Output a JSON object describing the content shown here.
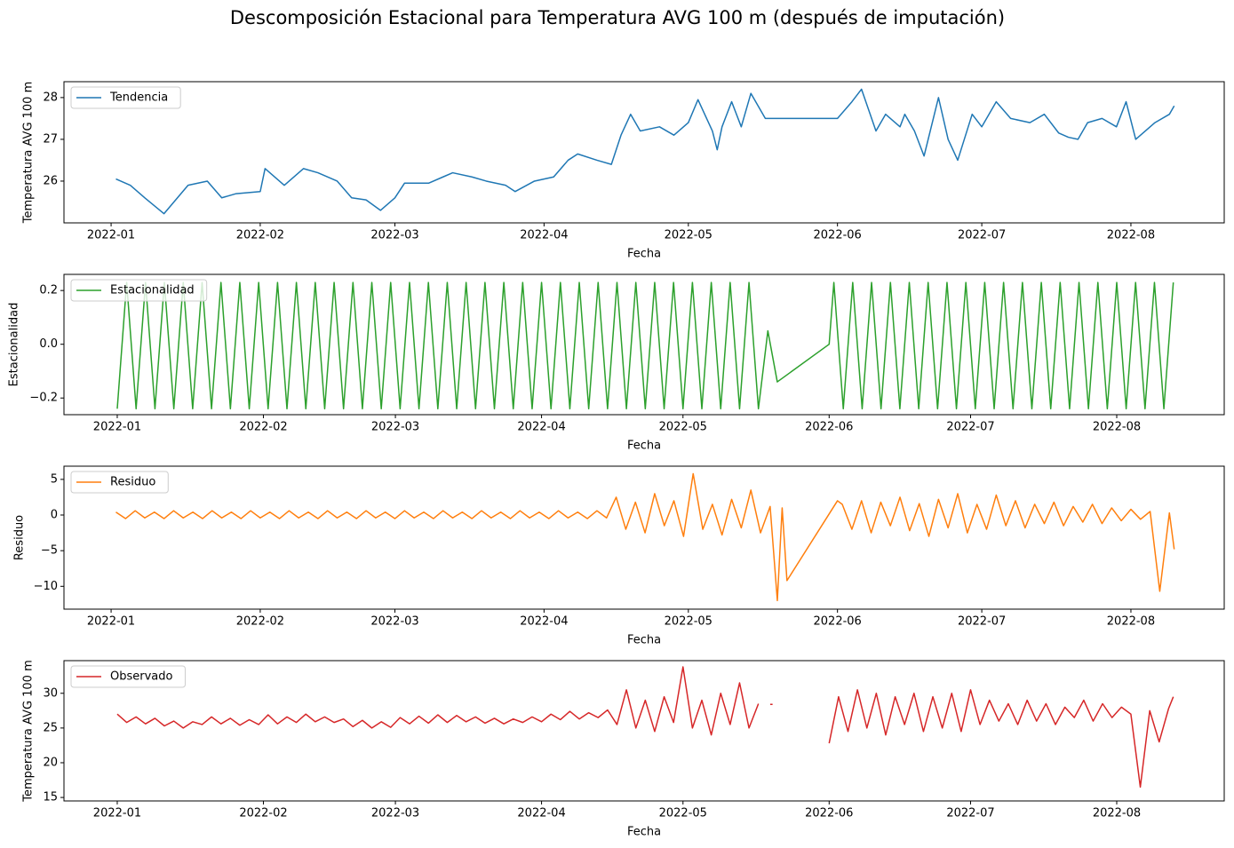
{
  "title": "Descomposición Estacional para Temperatura AVG 100 m (después de imputación)",
  "chart_data": [
    {
      "type": "line",
      "x_label": "Fecha",
      "y_label": "Temperatura AVG 100 m",
      "legend": "upper left",
      "xlim": [
        -9.8,
        231.4
      ],
      "ylim": [
        25.0,
        28.38
      ],
      "xticks": [
        {
          "value": 0,
          "label": "2022-01"
        },
        {
          "value": 31,
          "label": "2022-02"
        },
        {
          "value": 59,
          "label": "2022-03"
        },
        {
          "value": 90,
          "label": "2022-04"
        },
        {
          "value": 120,
          "label": "2022-05"
        },
        {
          "value": 151,
          "label": "2022-06"
        },
        {
          "value": 181,
          "label": "2022-07"
        },
        {
          "value": 212,
          "label": "2022-08"
        }
      ],
      "yticks": [
        26,
        27,
        28
      ],
      "x": [
        1,
        4,
        7,
        11,
        16,
        20,
        23,
        26,
        31,
        32,
        36,
        40,
        43,
        47,
        50,
        53,
        56,
        59,
        61,
        66,
        69,
        71,
        75,
        78,
        82,
        84,
        88,
        92,
        95,
        97,
        101,
        104,
        106,
        108,
        110,
        114,
        117,
        120,
        122,
        125,
        126,
        127,
        129,
        131,
        133,
        136,
        140,
        151,
        154,
        156,
        159,
        161,
        164,
        165,
        167,
        169,
        172,
        174,
        176,
        179,
        181,
        184,
        187,
        191,
        194,
        197,
        199,
        201,
        203,
        206,
        209,
        211,
        213,
        217,
        220,
        221
      ],
      "series": [
        {
          "name": "Tendencia",
          "color": "#1f77b4",
          "values": [
            26.05,
            25.9,
            25.6,
            25.22,
            25.9,
            26.0,
            25.6,
            25.7,
            25.75,
            26.3,
            25.9,
            26.3,
            26.2,
            26.0,
            25.6,
            25.55,
            25.3,
            25.6,
            25.95,
            25.95,
            26.1,
            26.2,
            26.1,
            26.0,
            25.9,
            25.75,
            26.0,
            26.1,
            26.5,
            26.65,
            26.5,
            26.4,
            27.1,
            27.6,
            27.2,
            27.3,
            27.1,
            27.4,
            27.95,
            27.2,
            26.75,
            27.3,
            27.9,
            27.3,
            28.1,
            27.5,
            27.5,
            27.5,
            27.9,
            28.2,
            27.2,
            27.6,
            27.3,
            27.6,
            27.2,
            26.6,
            28.0,
            27.0,
            26.5,
            27.6,
            27.3,
            27.9,
            27.5,
            27.4,
            27.6,
            27.15,
            27.05,
            27.0,
            27.4,
            27.5,
            27.3,
            27.9,
            27.0,
            27.4,
            27.6,
            27.8
          ]
        }
      ]
    },
    {
      "type": "line",
      "x_label": "Fecha",
      "y_label": "Estacionalidad",
      "legend": "upper left",
      "xlim": [
        -11.3,
        234.8
      ],
      "ylim": [
        -0.262,
        0.26
      ],
      "xticks": [
        {
          "value": 0,
          "label": "2022-01"
        },
        {
          "value": 31,
          "label": "2022-02"
        },
        {
          "value": 59,
          "label": "2022-03"
        },
        {
          "value": 90,
          "label": "2022-04"
        },
        {
          "value": 120,
          "label": "2022-05"
        },
        {
          "value": 151,
          "label": "2022-06"
        },
        {
          "value": 181,
          "label": "2022-07"
        },
        {
          "value": 212,
          "label": "2022-08"
        }
      ],
      "yticks": [
        0.2,
        {
          "value": 0,
          "label": "0.0"
        },
        {
          "value": -0.2,
          "label": "−0.2"
        }
      ],
      "x": [
        0,
        2,
        4,
        6,
        8,
        10,
        12,
        14,
        16,
        18,
        20,
        22,
        24,
        26,
        28,
        30,
        32,
        34,
        36,
        38,
        40,
        42,
        44,
        46,
        48,
        50,
        52,
        54,
        56,
        58,
        60,
        62,
        64,
        66,
        68,
        70,
        72,
        74,
        76,
        78,
        80,
        82,
        84,
        86,
        88,
        90,
        92,
        94,
        96,
        98,
        100,
        102,
        104,
        106,
        108,
        110,
        112,
        114,
        116,
        118,
        120,
        122,
        124,
        126,
        128,
        130,
        132,
        134,
        136,
        138,
        140,
        151,
        152,
        154,
        156,
        158,
        160,
        162,
        164,
        166,
        168,
        170,
        172,
        174,
        176,
        178,
        180,
        182,
        184,
        186,
        188,
        190,
        192,
        194,
        196,
        198,
        200,
        202,
        204,
        206,
        208,
        210,
        212,
        214,
        216,
        218,
        220,
        222,
        224
      ],
      "series": [
        {
          "name": "Estacionalidad",
          "color": "#2ca02c",
          "values": [
            -0.24,
            0.23,
            -0.24,
            0.23,
            -0.24,
            0.23,
            -0.24,
            0.23,
            -0.24,
            0.23,
            -0.24,
            0.23,
            -0.24,
            0.23,
            -0.24,
            0.23,
            -0.24,
            0.23,
            -0.24,
            0.23,
            -0.24,
            0.23,
            -0.24,
            0.23,
            -0.24,
            0.23,
            -0.24,
            0.23,
            -0.24,
            0.23,
            -0.24,
            0.23,
            -0.24,
            0.23,
            -0.24,
            0.23,
            -0.24,
            0.23,
            -0.24,
            0.23,
            -0.24,
            0.23,
            -0.24,
            0.23,
            -0.24,
            0.23,
            -0.24,
            0.23,
            -0.24,
            0.23,
            -0.24,
            0.23,
            -0.24,
            0.23,
            -0.24,
            0.23,
            -0.24,
            0.23,
            -0.24,
            0.23,
            -0.24,
            0.23,
            -0.24,
            0.23,
            -0.24,
            0.23,
            -0.24,
            0.23,
            -0.24,
            0.05,
            -0.14,
            0.0,
            0.23,
            -0.24,
            0.23,
            -0.24,
            0.23,
            -0.24,
            0.23,
            -0.24,
            0.23,
            -0.24,
            0.23,
            -0.24,
            0.23,
            -0.24,
            0.23,
            -0.24,
            0.23,
            -0.24,
            0.23,
            -0.24,
            0.23,
            -0.24,
            0.23,
            -0.24,
            0.23,
            -0.24,
            0.23,
            -0.24,
            0.23,
            -0.24,
            0.23,
            -0.24,
            0.23,
            -0.24,
            0.23,
            -0.24,
            0.23
          ]
        }
      ]
    },
    {
      "type": "line",
      "x_label": "Fecha",
      "y_label": "Residuo",
      "legend": "upper left",
      "xlim": [
        -9.8,
        231.4
      ],
      "ylim": [
        -13.2,
        6.85
      ],
      "xticks": [
        {
          "value": 0,
          "label": "2022-01"
        },
        {
          "value": 31,
          "label": "2022-02"
        },
        {
          "value": 59,
          "label": "2022-03"
        },
        {
          "value": 90,
          "label": "2022-04"
        },
        {
          "value": 120,
          "label": "2022-05"
        },
        {
          "value": 151,
          "label": "2022-06"
        },
        {
          "value": 181,
          "label": "2022-07"
        },
        {
          "value": 212,
          "label": "2022-08"
        }
      ],
      "yticks": [
        5,
        0,
        {
          "value": -5,
          "label": "−5"
        },
        {
          "value": -10,
          "label": "−10"
        }
      ],
      "x": [
        1,
        3,
        5,
        7,
        9,
        11,
        13,
        15,
        17,
        19,
        21,
        23,
        25,
        27,
        29,
        31,
        33,
        35,
        37,
        39,
        41,
        43,
        45,
        47,
        49,
        51,
        53,
        55,
        57,
        59,
        61,
        63,
        65,
        67,
        69,
        71,
        73,
        75,
        77,
        79,
        81,
        83,
        85,
        87,
        89,
        91,
        93,
        95,
        97,
        99,
        101,
        103,
        105,
        107,
        109,
        111,
        113,
        115,
        117,
        119,
        121,
        123,
        125,
        127,
        129,
        131,
        133,
        135,
        137,
        138.5,
        139.5,
        140.5,
        151,
        152,
        154,
        156,
        158,
        160,
        162,
        164,
        166,
        168,
        170,
        172,
        174,
        176,
        178,
        180,
        182,
        184,
        186,
        188,
        190,
        192,
        194,
        196,
        198,
        200,
        202,
        204,
        206,
        208,
        210,
        212,
        214,
        216,
        218,
        220,
        221
      ],
      "series": [
        {
          "name": "Residuo",
          "color": "#ff7f0e",
          "values": [
            0.4,
            -0.5,
            0.6,
            -0.4,
            0.4,
            -0.5,
            0.6,
            -0.4,
            0.4,
            -0.5,
            0.6,
            -0.4,
            0.4,
            -0.5,
            0.6,
            -0.4,
            0.4,
            -0.5,
            0.6,
            -0.4,
            0.4,
            -0.5,
            0.6,
            -0.4,
            0.4,
            -0.5,
            0.6,
            -0.4,
            0.4,
            -0.5,
            0.6,
            -0.4,
            0.4,
            -0.5,
            0.6,
            -0.4,
            0.4,
            -0.5,
            0.6,
            -0.4,
            0.4,
            -0.5,
            0.6,
            -0.4,
            0.4,
            -0.5,
            0.6,
            -0.4,
            0.4,
            -0.5,
            0.6,
            -0.4,
            2.5,
            -2,
            1.8,
            -2.5,
            3,
            -1.5,
            2,
            -3,
            5.8,
            -2,
            1.5,
            -2.8,
            2.2,
            -1.8,
            3.5,
            -2.5,
            1.2,
            -12,
            1,
            -9.2,
            2.0,
            1.5,
            -2,
            2,
            -2.5,
            1.8,
            -1.5,
            2.5,
            -2.2,
            1.6,
            -3,
            2.2,
            -1.8,
            3,
            -2.5,
            1.5,
            -2,
            2.8,
            -1.5,
            2,
            -1.8,
            1.5,
            -1.2,
            1.8,
            -1.5,
            1.2,
            -1,
            1.5,
            -1.2,
            1,
            -0.8,
            0.8,
            -0.6,
            0.5,
            -10.7,
            0.3,
            -4.8
          ]
        }
      ]
    },
    {
      "type": "line",
      "x_label": "Fecha",
      "y_label": "Temperatura AVG 100 m",
      "legend": "upper left",
      "xlim": [
        -11.3,
        234.8
      ],
      "ylim": [
        14.5,
        34.7
      ],
      "xticks": [
        {
          "value": 0,
          "label": "2022-01"
        },
        {
          "value": 31,
          "label": "2022-02"
        },
        {
          "value": 59,
          "label": "2022-03"
        },
        {
          "value": 90,
          "label": "2022-04"
        },
        {
          "value": 120,
          "label": "2022-05"
        },
        {
          "value": 151,
          "label": "2022-06"
        },
        {
          "value": 181,
          "label": "2022-07"
        },
        {
          "value": 212,
          "label": "2022-08"
        }
      ],
      "yticks": [
        15,
        20,
        25,
        30
      ],
      "x": [
        0,
        2,
        4,
        6,
        8,
        10,
        12,
        14,
        16,
        18,
        20,
        22,
        24,
        26,
        28,
        30,
        32,
        34,
        36,
        38,
        40,
        42,
        44,
        46,
        48,
        50,
        52,
        54,
        56,
        58,
        60,
        62,
        64,
        66,
        68,
        70,
        72,
        74,
        76,
        78,
        80,
        82,
        84,
        86,
        88,
        90,
        92,
        94,
        96,
        98,
        100,
        102,
        104,
        106,
        108,
        110,
        112,
        114,
        116,
        118,
        120,
        122,
        124,
        126,
        128,
        130,
        132,
        134,
        136,
        138,
        138.5,
        139,
        145,
        151,
        153,
        155,
        157,
        159,
        161,
        163,
        165,
        167,
        169,
        171,
        173,
        175,
        177,
        179,
        181,
        183,
        185,
        187,
        189,
        191,
        193,
        195,
        197,
        199,
        201,
        203,
        205,
        207,
        209,
        211,
        213,
        215,
        217,
        219,
        221,
        223,
        224
      ],
      "series": [
        {
          "name": "Observado",
          "color": "#d62728",
          "values": [
            27.0,
            25.8,
            26.6,
            25.6,
            26.4,
            25.3,
            26.0,
            25.0,
            25.9,
            25.5,
            26.6,
            25.6,
            26.4,
            25.4,
            26.2,
            25.5,
            26.9,
            25.6,
            26.6,
            25.8,
            27.0,
            25.9,
            26.6,
            25.8,
            26.3,
            25.2,
            26.1,
            25.0,
            25.9,
            25.1,
            26.5,
            25.6,
            26.7,
            25.7,
            26.9,
            25.8,
            26.8,
            25.9,
            26.6,
            25.7,
            26.4,
            25.6,
            26.3,
            25.8,
            26.6,
            25.9,
            27.0,
            26.2,
            27.4,
            26.3,
            27.2,
            26.5,
            27.6,
            25.5,
            30.5,
            25.0,
            29.0,
            24.5,
            29.5,
            25.8,
            33.8,
            25.0,
            29.0,
            24.0,
            30.0,
            25.5,
            31.5,
            25.0,
            28.5,
            null,
            28.4,
            28.4,
            null,
            22.8,
            29.5,
            24.5,
            30.5,
            25.0,
            30.0,
            24.0,
            29.5,
            25.5,
            30.0,
            24.5,
            29.5,
            25.0,
            30.0,
            24.5,
            30.5,
            25.5,
            29.0,
            26.0,
            28.5,
            25.5,
            29.0,
            26.0,
            28.5,
            25.5,
            28.0,
            26.5,
            29.0,
            26.0,
            28.5,
            26.5,
            28.0,
            27.0,
            16.5,
            27.5,
            23.0,
            27.8,
            29.5
          ]
        }
      ]
    }
  ]
}
